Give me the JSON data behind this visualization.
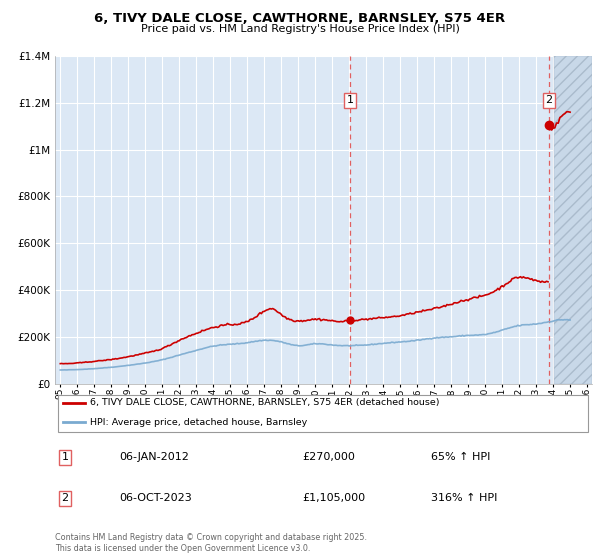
{
  "title": "6, TIVY DALE CLOSE, CAWTHORNE, BARNSLEY, S75 4ER",
  "subtitle": "Price paid vs. HM Land Registry's House Price Index (HPI)",
  "hpi_label": "HPI: Average price, detached house, Barnsley",
  "property_label": "6, TIVY DALE CLOSE, CAWTHORNE, BARNSLEY, S75 4ER (detached house)",
  "hpi_color": "#7aaad0",
  "property_color": "#cc0000",
  "dashed_color": "#e06060",
  "annotation1_date": "06-JAN-2012",
  "annotation1_price": "£270,000",
  "annotation1_hpi": "65% ↑ HPI",
  "annotation2_date": "06-OCT-2023",
  "annotation2_price": "£1,105,000",
  "annotation2_hpi": "316% ↑ HPI",
  "footer": "Contains HM Land Registry data © Crown copyright and database right 2025.\nThis data is licensed under the Open Government Licence v3.0.",
  "ylim": [
    0,
    1400000
  ],
  "yticks": [
    0,
    200000,
    400000,
    600000,
    800000,
    1000000,
    1200000,
    1400000
  ],
  "xmin": 1995,
  "xmax": 2026,
  "bg_color": "#ffffff",
  "plot_bg_color": "#dce8f5",
  "hatch_bg_color": "#ccddee",
  "grid_color": "#ffffff",
  "vline1_x": 2012.04,
  "vline2_x": 2023.75,
  "marker1_x": 2012.04,
  "marker1_y": 270000,
  "marker2_x": 2023.75,
  "marker2_y": 1105000
}
